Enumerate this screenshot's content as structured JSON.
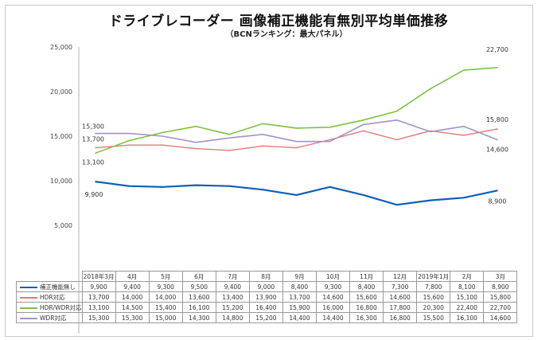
{
  "chart_data": {
    "type": "line",
    "title": "ドライブレコーダー 画像補正機能有無別平均単価推移",
    "subtitle": "（BCNランキング：最大パネル）",
    "xlabel": "",
    "ylabel": "",
    "ylim": [
      0,
      25000
    ],
    "yticks": [
      5000,
      10000,
      15000,
      20000,
      25000
    ],
    "ytick_labels": [
      "5,000",
      "10,000",
      "15,000",
      "20,000",
      "25,000"
    ],
    "grid": false,
    "legend": "data-table-bottom",
    "categories": [
      "2018年3月",
      "4月",
      "5月",
      "6月",
      "7月",
      "8月",
      "9月",
      "10月",
      "11月",
      "12月",
      "2019年1月",
      "2月",
      "3月"
    ],
    "series": [
      {
        "name": "補正機能無し",
        "color": "#0e5fb4",
        "values": [
          9900,
          9400,
          9300,
          9500,
          9400,
          9000,
          8400,
          9300,
          8400,
          7300,
          7800,
          8100,
          8900
        ],
        "display": [
          "9,900",
          "9,400",
          "9,300",
          "9,500",
          "9,400",
          "9,000",
          "8,400",
          "9,300",
          "8,400",
          "7,300",
          "7,800",
          "8,100",
          "8,900"
        ],
        "start_label": "9,900",
        "end_label": "8,900"
      },
      {
        "name": "HDR対応",
        "color": "#e07b74",
        "values": [
          13700,
          14000,
          14000,
          13600,
          13400,
          13900,
          13700,
          14600,
          15600,
          14600,
          15600,
          15100,
          15800
        ],
        "display": [
          "13,700",
          "14,000",
          "14,000",
          "13,600",
          "13,400",
          "13,900",
          "13,700",
          "14,600",
          "15,600",
          "14,600",
          "15,600",
          "15,100",
          "15,800"
        ],
        "start_label": "13,700",
        "end_label": "15,800"
      },
      {
        "name": "HDR/WDR対応",
        "color": "#7dc242",
        "values": [
          13100,
          14500,
          15400,
          16100,
          15200,
          16400,
          15900,
          16000,
          16800,
          17800,
          20300,
          22400,
          22700
        ],
        "display": [
          "13,100",
          "14,500",
          "15,400",
          "16,100",
          "15,200",
          "16,400",
          "15,900",
          "16,000",
          "16,800",
          "17,800",
          "20,300",
          "22,400",
          "22,700"
        ],
        "start_label": "13,100",
        "end_label": "22,700"
      },
      {
        "name": "WDR対応",
        "color": "#a294c8",
        "values": [
          15300,
          15300,
          15000,
          14300,
          14800,
          15200,
          14400,
          14400,
          16300,
          16800,
          15500,
          16100,
          14600
        ],
        "display": [
          "15,300",
          "15,300",
          "15,000",
          "14,300",
          "14,800",
          "15,200",
          "14,400",
          "14,400",
          "16,300",
          "16,800",
          "15,500",
          "16,100",
          "14,600"
        ],
        "start_label": "15,300",
        "end_label": "14,600"
      }
    ]
  }
}
